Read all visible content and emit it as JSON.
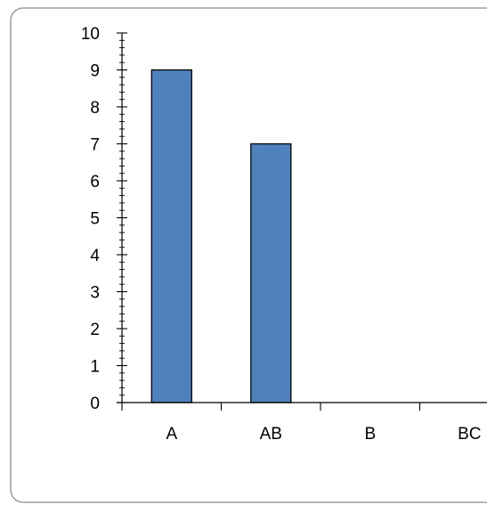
{
  "chart_data": {
    "type": "bar",
    "categories": [
      "A",
      "AB",
      "B",
      "BC"
    ],
    "values": [
      9,
      7,
      0,
      0
    ],
    "ylim": [
      0,
      10
    ],
    "y_ticks": [
      "0",
      "1",
      "2",
      "3",
      "4",
      "5",
      "6",
      "7",
      "8",
      "9",
      "10"
    ],
    "y_minor_step": 0.2,
    "grid": false,
    "legend": "none",
    "title": "",
    "xlabel": "",
    "ylabel": "",
    "colors": {
      "bar_fill": "#4F81BD",
      "bar_stroke": "#000000",
      "axis": "#000000",
      "frame_border": "#8C8C8C"
    }
  }
}
